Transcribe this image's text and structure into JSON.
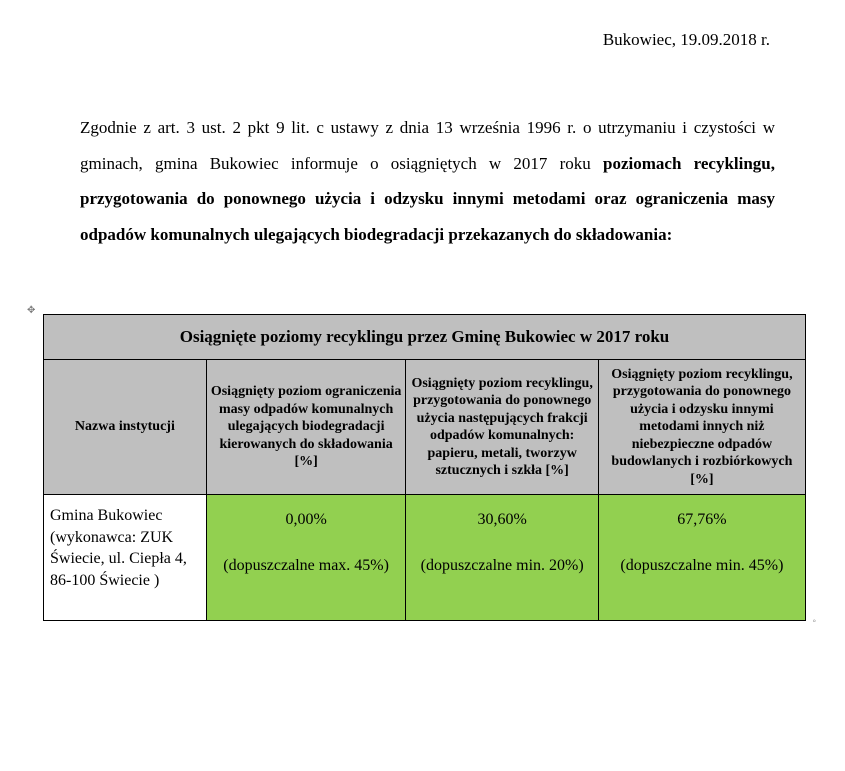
{
  "date_line": "Bukowiec, 19.09.2018 r.",
  "intro_plain": "Zgodnie z art. 3  ust. 2 pkt 9 lit. c ustawy z dnia 13 września 1996 r. o utrzymaniu i czystości w gminach, gmina Bukowiec informuje o osiągniętych w 2017 roku ",
  "intro_bold": "poziomach recyklingu, przygotowania do ponownego użycia i odzysku innymi metodami oraz ograniczenia masy odpadów komunalnych ulegających biodegradacji przekazanych do składowania:",
  "table": {
    "title": "Osiągnięte poziomy recyklingu przez Gminę Bukowiec w 2017 roku",
    "title_bg": "#bfbfbf",
    "header_bg": "#bfbfbf",
    "data_bg": "#92d050",
    "border_color": "#000000",
    "columns": [
      "Nazwa instytucji",
      "Osiągnięty poziom ograniczenia masy odpadów komunalnych ulegających biodegradacji kierowanych do składowania [%]",
      "Osiągnięty poziom recyklingu, przygotowania do ponownego użycia następujących frakcji odpadów komunalnych: papieru, metali, tworzyw sztucznych i szkła [%]",
      "Osiągnięty poziom recyklingu, przygotowania do ponownego użycia i odzysku innymi metodami innych niż niebezpieczne odpadów budowlanych i rozbiórkowych [%]"
    ],
    "row": {
      "label": "Gmina Bukowiec (wykonawca: ZUK Świecie, ul. Ciepła 4, 86-100 Świecie )",
      "values": [
        "0,00%",
        "30,60%",
        "67,76%"
      ],
      "notes": [
        "(dopuszczalne max. 45%)",
        "(dopuszczalne min. 20%)",
        "(dopuszczalne min. 45%)"
      ]
    }
  }
}
